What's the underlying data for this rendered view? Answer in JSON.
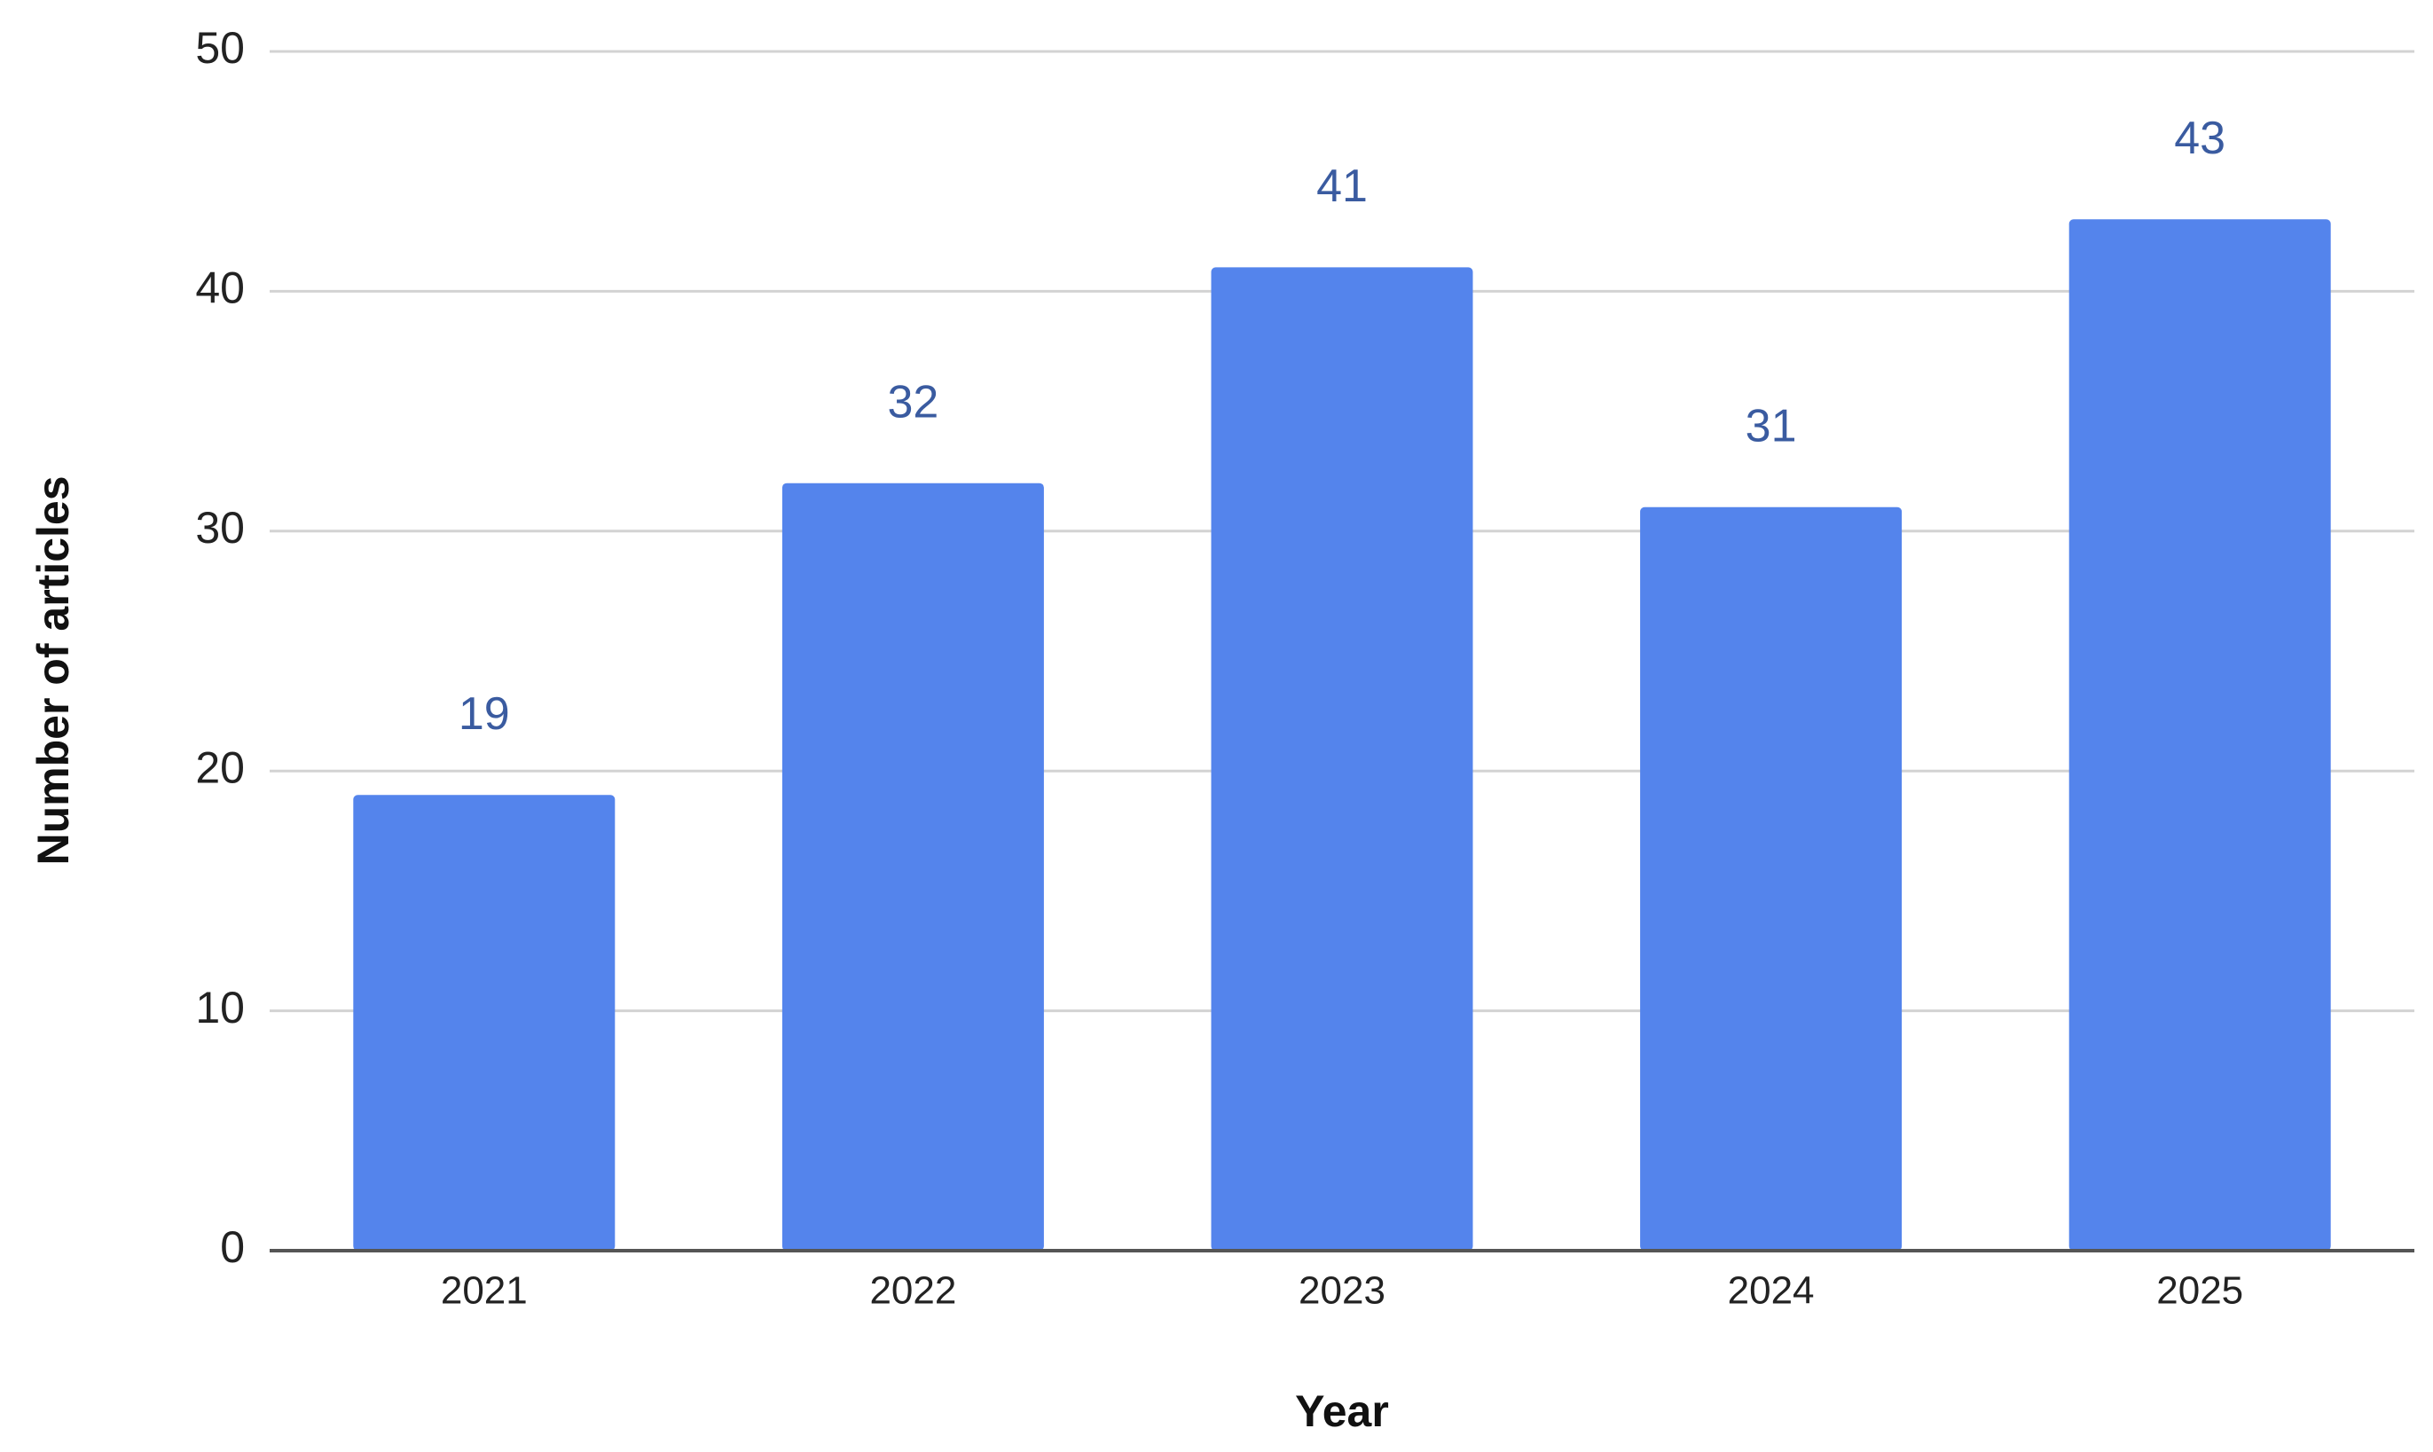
{
  "chart_data": {
    "type": "bar",
    "x_label": "Year",
    "y_label": "Number of articles",
    "categories": [
      "2021",
      "2022",
      "2023",
      "2024",
      "2025"
    ],
    "values": [
      19,
      32,
      41,
      31,
      43
    ],
    "color": "#5484ec",
    "label_color": "#3a5ba0",
    "ylim": [
      0,
      50
    ],
    "yticks": [
      0,
      10,
      20,
      30,
      40,
      50
    ],
    "grid": true
  }
}
